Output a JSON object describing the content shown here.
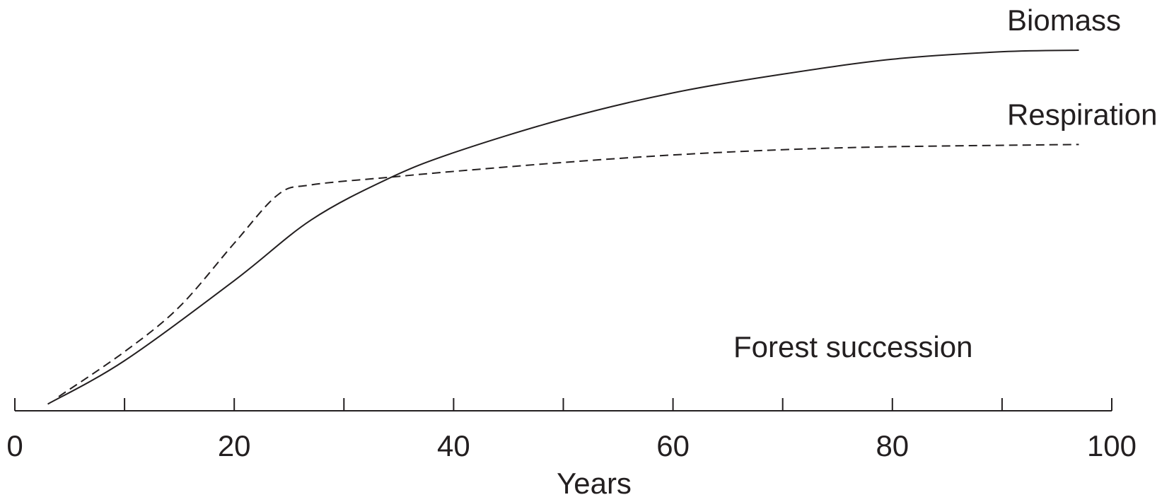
{
  "chart_data": {
    "type": "line",
    "annotation": "Forest succession",
    "x_label": "Years",
    "xlim": [
      0,
      100
    ],
    "xticks": [
      0,
      20,
      40,
      60,
      80,
      100
    ],
    "minor_xticks": [
      10,
      30,
      50,
      70,
      90
    ],
    "ylim": [
      0,
      100
    ],
    "series": [
      {
        "name": "Biomass",
        "color": "#231f20",
        "dashed": false,
        "x": [
          3,
          10,
          20,
          27,
          34,
          40,
          50,
          60,
          70,
          80,
          90,
          97
        ],
        "values": [
          1.8,
          13.4,
          34.8,
          51,
          62,
          69,
          78,
          85,
          90,
          94,
          96,
          96.4
        ]
      },
      {
        "name": "Respiration",
        "color": "#231f20",
        "dashed": true,
        "x": [
          4,
          10,
          15,
          20,
          24,
          27,
          34,
          40,
          50,
          60,
          70,
          80,
          97
        ],
        "values": [
          3.8,
          15.8,
          27.8,
          44.8,
          57.8,
          60.4,
          62.4,
          64,
          66.4,
          68.4,
          69.8,
          70.6,
          71.2
        ]
      }
    ]
  }
}
